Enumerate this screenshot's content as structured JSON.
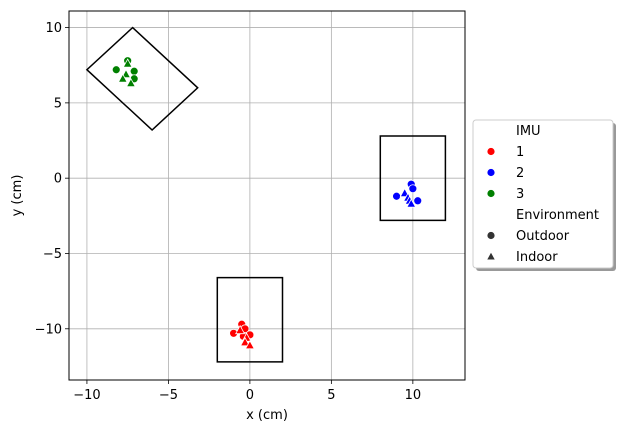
{
  "chart_data": {
    "type": "scatter",
    "xlabel": "x (cm)",
    "ylabel": "y (cm)",
    "xlim": [
      -11.1,
      13.2
    ],
    "ylim": [
      -13.4,
      11.1
    ],
    "x_ticks": [
      -10,
      -5,
      0,
      5,
      10
    ],
    "y_ticks": [
      -10,
      -5,
      0,
      5,
      10
    ],
    "x_tick_labels": [
      "−10",
      "−5",
      "0",
      "5",
      "10"
    ],
    "y_tick_labels": [
      "−10",
      "−5",
      "0",
      "5",
      "10"
    ],
    "grid": true,
    "legend_position": "right",
    "legend": {
      "hue_title": "IMU",
      "hue_entries": [
        {
          "label": "1",
          "color": "#ff0000"
        },
        {
          "label": "2",
          "color": "#0000ff"
        },
        {
          "label": "3",
          "color": "#008000"
        }
      ],
      "style_title": "Environment",
      "style_entries": [
        {
          "label": "Outdoor",
          "marker": "circle"
        },
        {
          "label": "Indoor",
          "marker": "triangle"
        }
      ]
    },
    "regions": [
      {
        "imu": "1",
        "corners": [
          [
            -2,
            -6.6
          ],
          [
            2,
            -6.6
          ],
          [
            2,
            -12.2
          ],
          [
            -2,
            -12.2
          ]
        ]
      },
      {
        "imu": "2",
        "corners": [
          [
            8,
            2.8
          ],
          [
            12,
            2.8
          ],
          [
            12,
            -2.8
          ],
          [
            8,
            -2.8
          ]
        ]
      },
      {
        "imu": "3",
        "corners": [
          [
            -7.2,
            10
          ],
          [
            -3.2,
            6
          ],
          [
            -6,
            3.2
          ],
          [
            -10,
            7.2
          ]
        ]
      }
    ],
    "points": [
      {
        "imu": "1",
        "environment": "Outdoor",
        "x": -1.0,
        "y": -10.3
      },
      {
        "imu": "1",
        "environment": "Outdoor",
        "x": -0.5,
        "y": -9.7
      },
      {
        "imu": "1",
        "environment": "Outdoor",
        "x": -0.3,
        "y": -10.0
      },
      {
        "imu": "1",
        "environment": "Outdoor",
        "x": -0.4,
        "y": -10.5
      },
      {
        "imu": "1",
        "environment": "Outdoor",
        "x": 0.0,
        "y": -10.4
      },
      {
        "imu": "1",
        "environment": "Indoor",
        "x": -0.6,
        "y": -10.1
      },
      {
        "imu": "1",
        "environment": "Indoor",
        "x": -0.2,
        "y": -10.6
      },
      {
        "imu": "1",
        "environment": "Indoor",
        "x": -0.3,
        "y": -10.9
      },
      {
        "imu": "1",
        "environment": "Indoor",
        "x": 0.0,
        "y": -11.1
      },
      {
        "imu": "2",
        "environment": "Outdoor",
        "x": 9.0,
        "y": -1.2
      },
      {
        "imu": "2",
        "environment": "Outdoor",
        "x": 9.9,
        "y": -0.4
      },
      {
        "imu": "2",
        "environment": "Outdoor",
        "x": 10.0,
        "y": -0.7
      },
      {
        "imu": "2",
        "environment": "Outdoor",
        "x": 10.3,
        "y": -1.5
      },
      {
        "imu": "2",
        "environment": "Indoor",
        "x": 9.5,
        "y": -1.0
      },
      {
        "imu": "2",
        "environment": "Indoor",
        "x": 9.7,
        "y": -1.3
      },
      {
        "imu": "2",
        "environment": "Indoor",
        "x": 9.8,
        "y": -1.5
      },
      {
        "imu": "2",
        "environment": "Indoor",
        "x": 9.9,
        "y": -1.7
      },
      {
        "imu": "3",
        "environment": "Outdoor",
        "x": -8.2,
        "y": 7.2
      },
      {
        "imu": "3",
        "environment": "Outdoor",
        "x": -7.5,
        "y": 7.8
      },
      {
        "imu": "3",
        "environment": "Outdoor",
        "x": -7.1,
        "y": 7.1
      },
      {
        "imu": "3",
        "environment": "Outdoor",
        "x": -7.1,
        "y": 6.6
      },
      {
        "imu": "3",
        "environment": "Indoor",
        "x": -7.5,
        "y": 7.6
      },
      {
        "imu": "3",
        "environment": "Indoor",
        "x": -7.6,
        "y": 6.9
      },
      {
        "imu": "3",
        "environment": "Indoor",
        "x": -7.8,
        "y": 6.6
      },
      {
        "imu": "3",
        "environment": "Indoor",
        "x": -7.3,
        "y": 6.3
      }
    ]
  }
}
